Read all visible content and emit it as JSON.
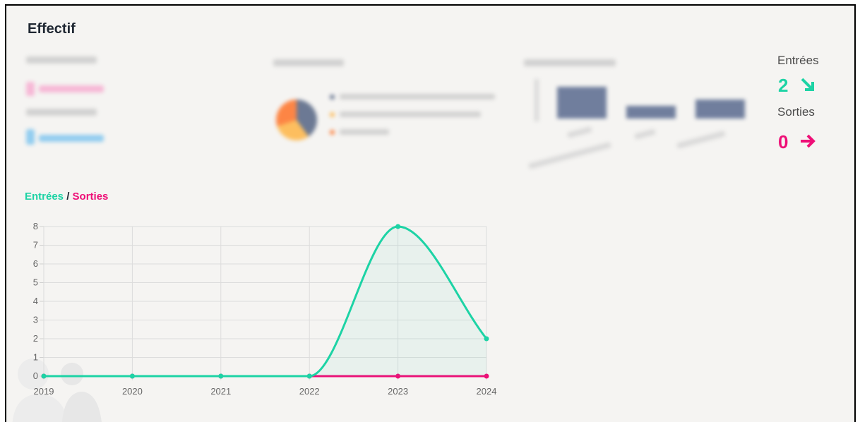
{
  "page": {
    "title": "Effectif"
  },
  "stats": {
    "entrees_label": "Entrées",
    "entrees_value": "2",
    "sorties_label": "Sorties",
    "sorties_value": "0",
    "entrees_color": "#1dd3a5",
    "sorties_color": "#ee0f77"
  },
  "chart_title": {
    "entrees": "Entrées",
    "separator": " / ",
    "sorties": "Sorties"
  },
  "chart_data": {
    "type": "line",
    "x": [
      "2019",
      "2020",
      "2021",
      "2022",
      "2023",
      "2024"
    ],
    "series": [
      {
        "name": "Entrées",
        "values": [
          0,
          0,
          0,
          0,
          8,
          2
        ],
        "color": "#1dd3a5"
      },
      {
        "name": "Sorties",
        "values": [
          0,
          0,
          0,
          0,
          0,
          0
        ],
        "color": "#ee0f77"
      }
    ],
    "ylim": [
      0,
      8
    ],
    "yticks": [
      "0",
      "1",
      "2",
      "3",
      "4",
      "5",
      "6",
      "7",
      "8"
    ],
    "grid": true
  }
}
